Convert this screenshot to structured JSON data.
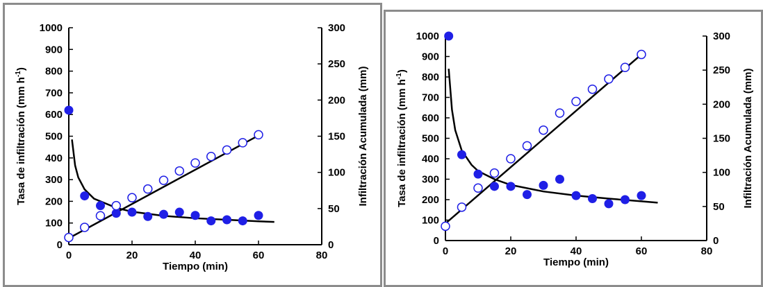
{
  "chart_data": [
    {
      "type": "scatter",
      "xlabel": "Tiempo (min)",
      "ylabel_main": "Tasa de infiltración (mm h",
      "ylabel_sup": "-1",
      "ylabel_close": ")",
      "y2label": "Infiltración Acumulada (mm)",
      "xlim": [
        0,
        80
      ],
      "ylim": [
        0,
        1000
      ],
      "y2lim": [
        0,
        300
      ],
      "xticks": [
        "0",
        "20",
        "40",
        "60",
        "80"
      ],
      "yticks": [
        "0",
        "100",
        "200",
        "300",
        "400",
        "500",
        "600",
        "700",
        "800",
        "900",
        "1000"
      ],
      "y2ticks": [
        "0",
        "50",
        "100",
        "150",
        "200",
        "250",
        "300"
      ],
      "grid": false,
      "legend": "none",
      "series": [
        {
          "kind": "rate-points",
          "axis": "left",
          "marker": "filled-circle",
          "color": "#1f1fe6",
          "x": [
            0,
            5,
            10,
            15,
            20,
            25,
            30,
            35,
            40,
            45,
            50,
            55,
            60
          ],
          "y": [
            620,
            225,
            180,
            145,
            150,
            130,
            140,
            150,
            135,
            110,
            115,
            110,
            135
          ]
        },
        {
          "kind": "cumulative-points",
          "axis": "right",
          "marker": "open-circle",
          "color": "#1f1fe6",
          "x": [
            0,
            5,
            10,
            15,
            20,
            25,
            30,
            35,
            40,
            45,
            50,
            55,
            60
          ],
          "y": [
            10,
            24,
            40,
            54,
            65,
            77,
            89,
            102,
            113,
            122,
            131,
            141,
            152
          ]
        },
        {
          "kind": "rate-fit",
          "axis": "left",
          "line": "solid",
          "color": "#000000",
          "x": [
            1,
            2,
            3,
            5,
            8,
            10,
            15,
            20,
            30,
            40,
            50,
            60,
            65
          ],
          "y": [
            485,
            365,
            310,
            255,
            212,
            200,
            170,
            152,
            133,
            122,
            115,
            108,
            105
          ]
        },
        {
          "kind": "cumulative-fit",
          "axis": "right",
          "line": "solid",
          "color": "#000000",
          "x": [
            0,
            60
          ],
          "y": [
            9,
            151
          ]
        }
      ]
    },
    {
      "type": "scatter",
      "xlabel": "Tiempo (min)",
      "ylabel_main": "Tasa de infiltración (mm h",
      "ylabel_sup": "-1",
      "ylabel_close": ")",
      "y2label": "Infiltración Acumulada (mm)",
      "xlim": [
        0,
        80
      ],
      "ylim": [
        0,
        1000
      ],
      "y2lim": [
        0,
        300
      ],
      "xticks": [
        "0",
        "20",
        "40",
        "60",
        "80"
      ],
      "yticks": [
        "0",
        "100",
        "200",
        "300",
        "400",
        "500",
        "600",
        "700",
        "800",
        "900",
        "1000"
      ],
      "y2ticks": [
        "0",
        "50",
        "100",
        "150",
        "200",
        "250",
        "300"
      ],
      "grid": false,
      "legend": "none",
      "series": [
        {
          "kind": "rate-points",
          "axis": "left",
          "marker": "filled-circle",
          "color": "#1f1fe6",
          "x": [
            1,
            5,
            10,
            15,
            20,
            25,
            30,
            35,
            40,
            45,
            50,
            55,
            60
          ],
          "y": [
            1000,
            420,
            325,
            265,
            265,
            225,
            270,
            300,
            220,
            205,
            180,
            200,
            220
          ]
        },
        {
          "kind": "cumulative-points",
          "axis": "right",
          "marker": "open-circle",
          "color": "#1f1fe6",
          "x": [
            0,
            5,
            10,
            15,
            20,
            25,
            30,
            35,
            40,
            45,
            50,
            55,
            60
          ],
          "y": [
            21,
            49,
            77,
            99,
            120,
            139,
            162,
            187,
            204,
            222,
            237,
            254,
            273
          ]
        },
        {
          "kind": "rate-fit",
          "axis": "left",
          "line": "solid",
          "color": "#000000",
          "x": [
            1,
            2,
            3,
            5,
            8,
            10,
            15,
            20,
            30,
            40,
            50,
            60,
            65
          ],
          "y": [
            840,
            640,
            540,
            440,
            370,
            340,
            300,
            272,
            240,
            220,
            205,
            192,
            185
          ]
        },
        {
          "kind": "cumulative-fit",
          "axis": "right",
          "line": "solid",
          "color": "#000000",
          "x": [
            0,
            60
          ],
          "y": [
            25,
            273
          ]
        }
      ]
    }
  ]
}
